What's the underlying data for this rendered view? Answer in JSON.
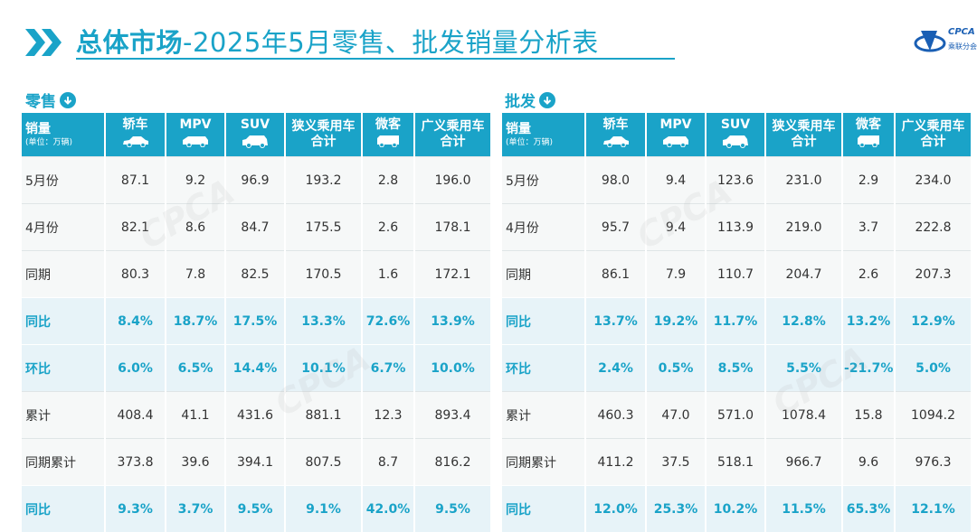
{
  "header": {
    "title_main": "总体市场",
    "title_rest": "-2025年5月零售、批发销量分析表",
    "logo_text": "CPCA",
    "logo_sub": "乘联分会"
  },
  "colors": {
    "accent": "#1aa3c8",
    "panel_bg": "#f6f8f8",
    "pct_row_bg": "#e7f3f8"
  },
  "retail": {
    "label": "零售",
    "columns": [
      {
        "label": "销量",
        "unit": "(单位：万辆)"
      },
      {
        "label": "轿车",
        "icon": "sedan-icon"
      },
      {
        "label": "MPV",
        "icon": "mpv-icon"
      },
      {
        "label": "SUV",
        "icon": "suv-icon"
      },
      {
        "label": "狭义乘用车合计"
      },
      {
        "label": "微客",
        "icon": "minivan-icon"
      },
      {
        "label": "广义乘用车合计"
      }
    ],
    "rows": [
      {
        "name": "5月份",
        "values": [
          "87.1",
          "9.2",
          "96.9",
          "193.2",
          "2.8",
          "196.0"
        ],
        "highlight": false
      },
      {
        "name": "4月份",
        "values": [
          "82.1",
          "8.6",
          "84.7",
          "175.5",
          "2.6",
          "178.1"
        ],
        "highlight": false
      },
      {
        "name": "同期",
        "values": [
          "80.3",
          "7.8",
          "82.5",
          "170.5",
          "1.6",
          "172.1"
        ],
        "highlight": false
      },
      {
        "name": "同比",
        "values": [
          "8.4%",
          "18.7%",
          "17.5%",
          "13.3%",
          "72.6%",
          "13.9%"
        ],
        "highlight": true
      },
      {
        "name": "环比",
        "values": [
          "6.0%",
          "6.5%",
          "14.4%",
          "10.1%",
          "6.7%",
          "10.0%"
        ],
        "highlight": true
      },
      {
        "name": "累计",
        "values": [
          "408.4",
          "41.1",
          "431.6",
          "881.1",
          "12.3",
          "893.4"
        ],
        "highlight": false
      },
      {
        "name": "同期累计",
        "values": [
          "373.8",
          "39.6",
          "394.1",
          "807.5",
          "8.7",
          "816.2"
        ],
        "highlight": false
      },
      {
        "name": "同比",
        "values": [
          "9.3%",
          "3.7%",
          "9.5%",
          "9.1%",
          "42.0%",
          "9.5%"
        ],
        "highlight": true
      }
    ]
  },
  "wholesale": {
    "label": "批发",
    "columns": [
      {
        "label": "销量",
        "unit": "(单位：万辆)"
      },
      {
        "label": "轿车",
        "icon": "sedan-icon"
      },
      {
        "label": "MPV",
        "icon": "mpv-icon"
      },
      {
        "label": "SUV",
        "icon": "suv-icon"
      },
      {
        "label": "狭义乘用车合计"
      },
      {
        "label": "微客",
        "icon": "minivan-icon"
      },
      {
        "label": "广义乘用车合计"
      }
    ],
    "rows": [
      {
        "name": "5月份",
        "values": [
          "98.0",
          "9.4",
          "123.6",
          "231.0",
          "2.9",
          "234.0"
        ],
        "highlight": false
      },
      {
        "name": "4月份",
        "values": [
          "95.7",
          "9.4",
          "113.9",
          "219.0",
          "3.7",
          "222.8"
        ],
        "highlight": false
      },
      {
        "name": "同期",
        "values": [
          "86.1",
          "7.9",
          "110.7",
          "204.7",
          "2.6",
          "207.3"
        ],
        "highlight": false
      },
      {
        "name": "同比",
        "values": [
          "13.7%",
          "19.2%",
          "11.7%",
          "12.8%",
          "13.2%",
          "12.9%"
        ],
        "highlight": true
      },
      {
        "name": "环比",
        "values": [
          "2.4%",
          "0.5%",
          "8.5%",
          "5.5%",
          "-21.7%",
          "5.0%"
        ],
        "highlight": true
      },
      {
        "name": "累计",
        "values": [
          "460.3",
          "47.0",
          "571.0",
          "1078.4",
          "15.8",
          "1094.2"
        ],
        "highlight": false
      },
      {
        "name": "同期累计",
        "values": [
          "411.2",
          "37.5",
          "518.1",
          "966.7",
          "9.6",
          "976.3"
        ],
        "highlight": false
      },
      {
        "name": "同比",
        "values": [
          "12.0%",
          "25.3%",
          "10.2%",
          "11.5%",
          "65.3%",
          "12.1%"
        ],
        "highlight": true
      }
    ]
  }
}
